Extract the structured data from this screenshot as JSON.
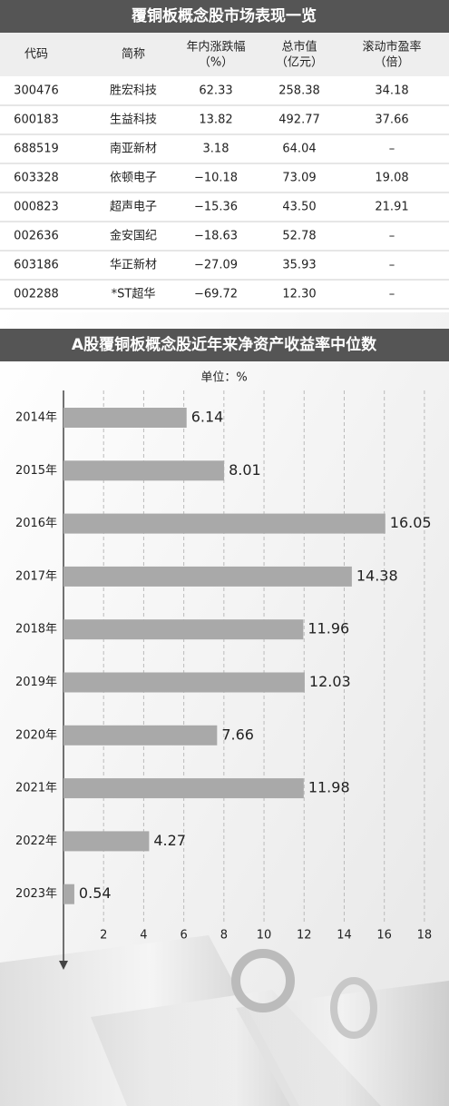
{
  "table": {
    "title": "覆铜板概念股市场表现一览",
    "header": [
      [
        "代码"
      ],
      [
        "简称"
      ],
      [
        "年内涨跌幅",
        "（%）"
      ],
      [
        "总市值",
        "（亿元）"
      ],
      [
        "滚动市盈率",
        "（倍）"
      ]
    ],
    "rows": [
      [
        "300476",
        "胜宏科技",
        "62.33",
        "258.38",
        "34.18"
      ],
      [
        "600183",
        "生益科技",
        "13.82",
        "492.77",
        "37.66"
      ],
      [
        "688519",
        "南亚新材",
        "3.18",
        "64.04",
        "–"
      ],
      [
        "603328",
        "依顿电子",
        "−10.18",
        "73.09",
        "19.08"
      ],
      [
        "000823",
        "超声电子",
        "−15.36",
        "43.50",
        "21.91"
      ],
      [
        "002636",
        "金安国纪",
        "−18.63",
        "52.78",
        "–"
      ],
      [
        "603186",
        "华正新材",
        "−27.09",
        "35.93",
        "–"
      ],
      [
        "002288",
        "*ST超华",
        "−69.72",
        "12.30",
        "–"
      ]
    ]
  },
  "chart_data": {
    "type": "hbar",
    "title": "A股覆铜板概念股近年来净资产收益率中位数",
    "subtitle": "单位：%",
    "categories": [
      "2014年",
      "2015年",
      "2016年",
      "2017年",
      "2018年",
      "2019年",
      "2020年",
      "2021年",
      "2022年",
      "2023年"
    ],
    "values": [
      6.14,
      8.01,
      16.05,
      14.38,
      11.96,
      12.03,
      7.66,
      11.98,
      4.27,
      0.54
    ],
    "color": "#a9a9a9",
    "xlim": [
      0,
      19
    ],
    "xticks": [
      2,
      4,
      6,
      8,
      10,
      12,
      14,
      16,
      18
    ],
    "grid": true
  }
}
